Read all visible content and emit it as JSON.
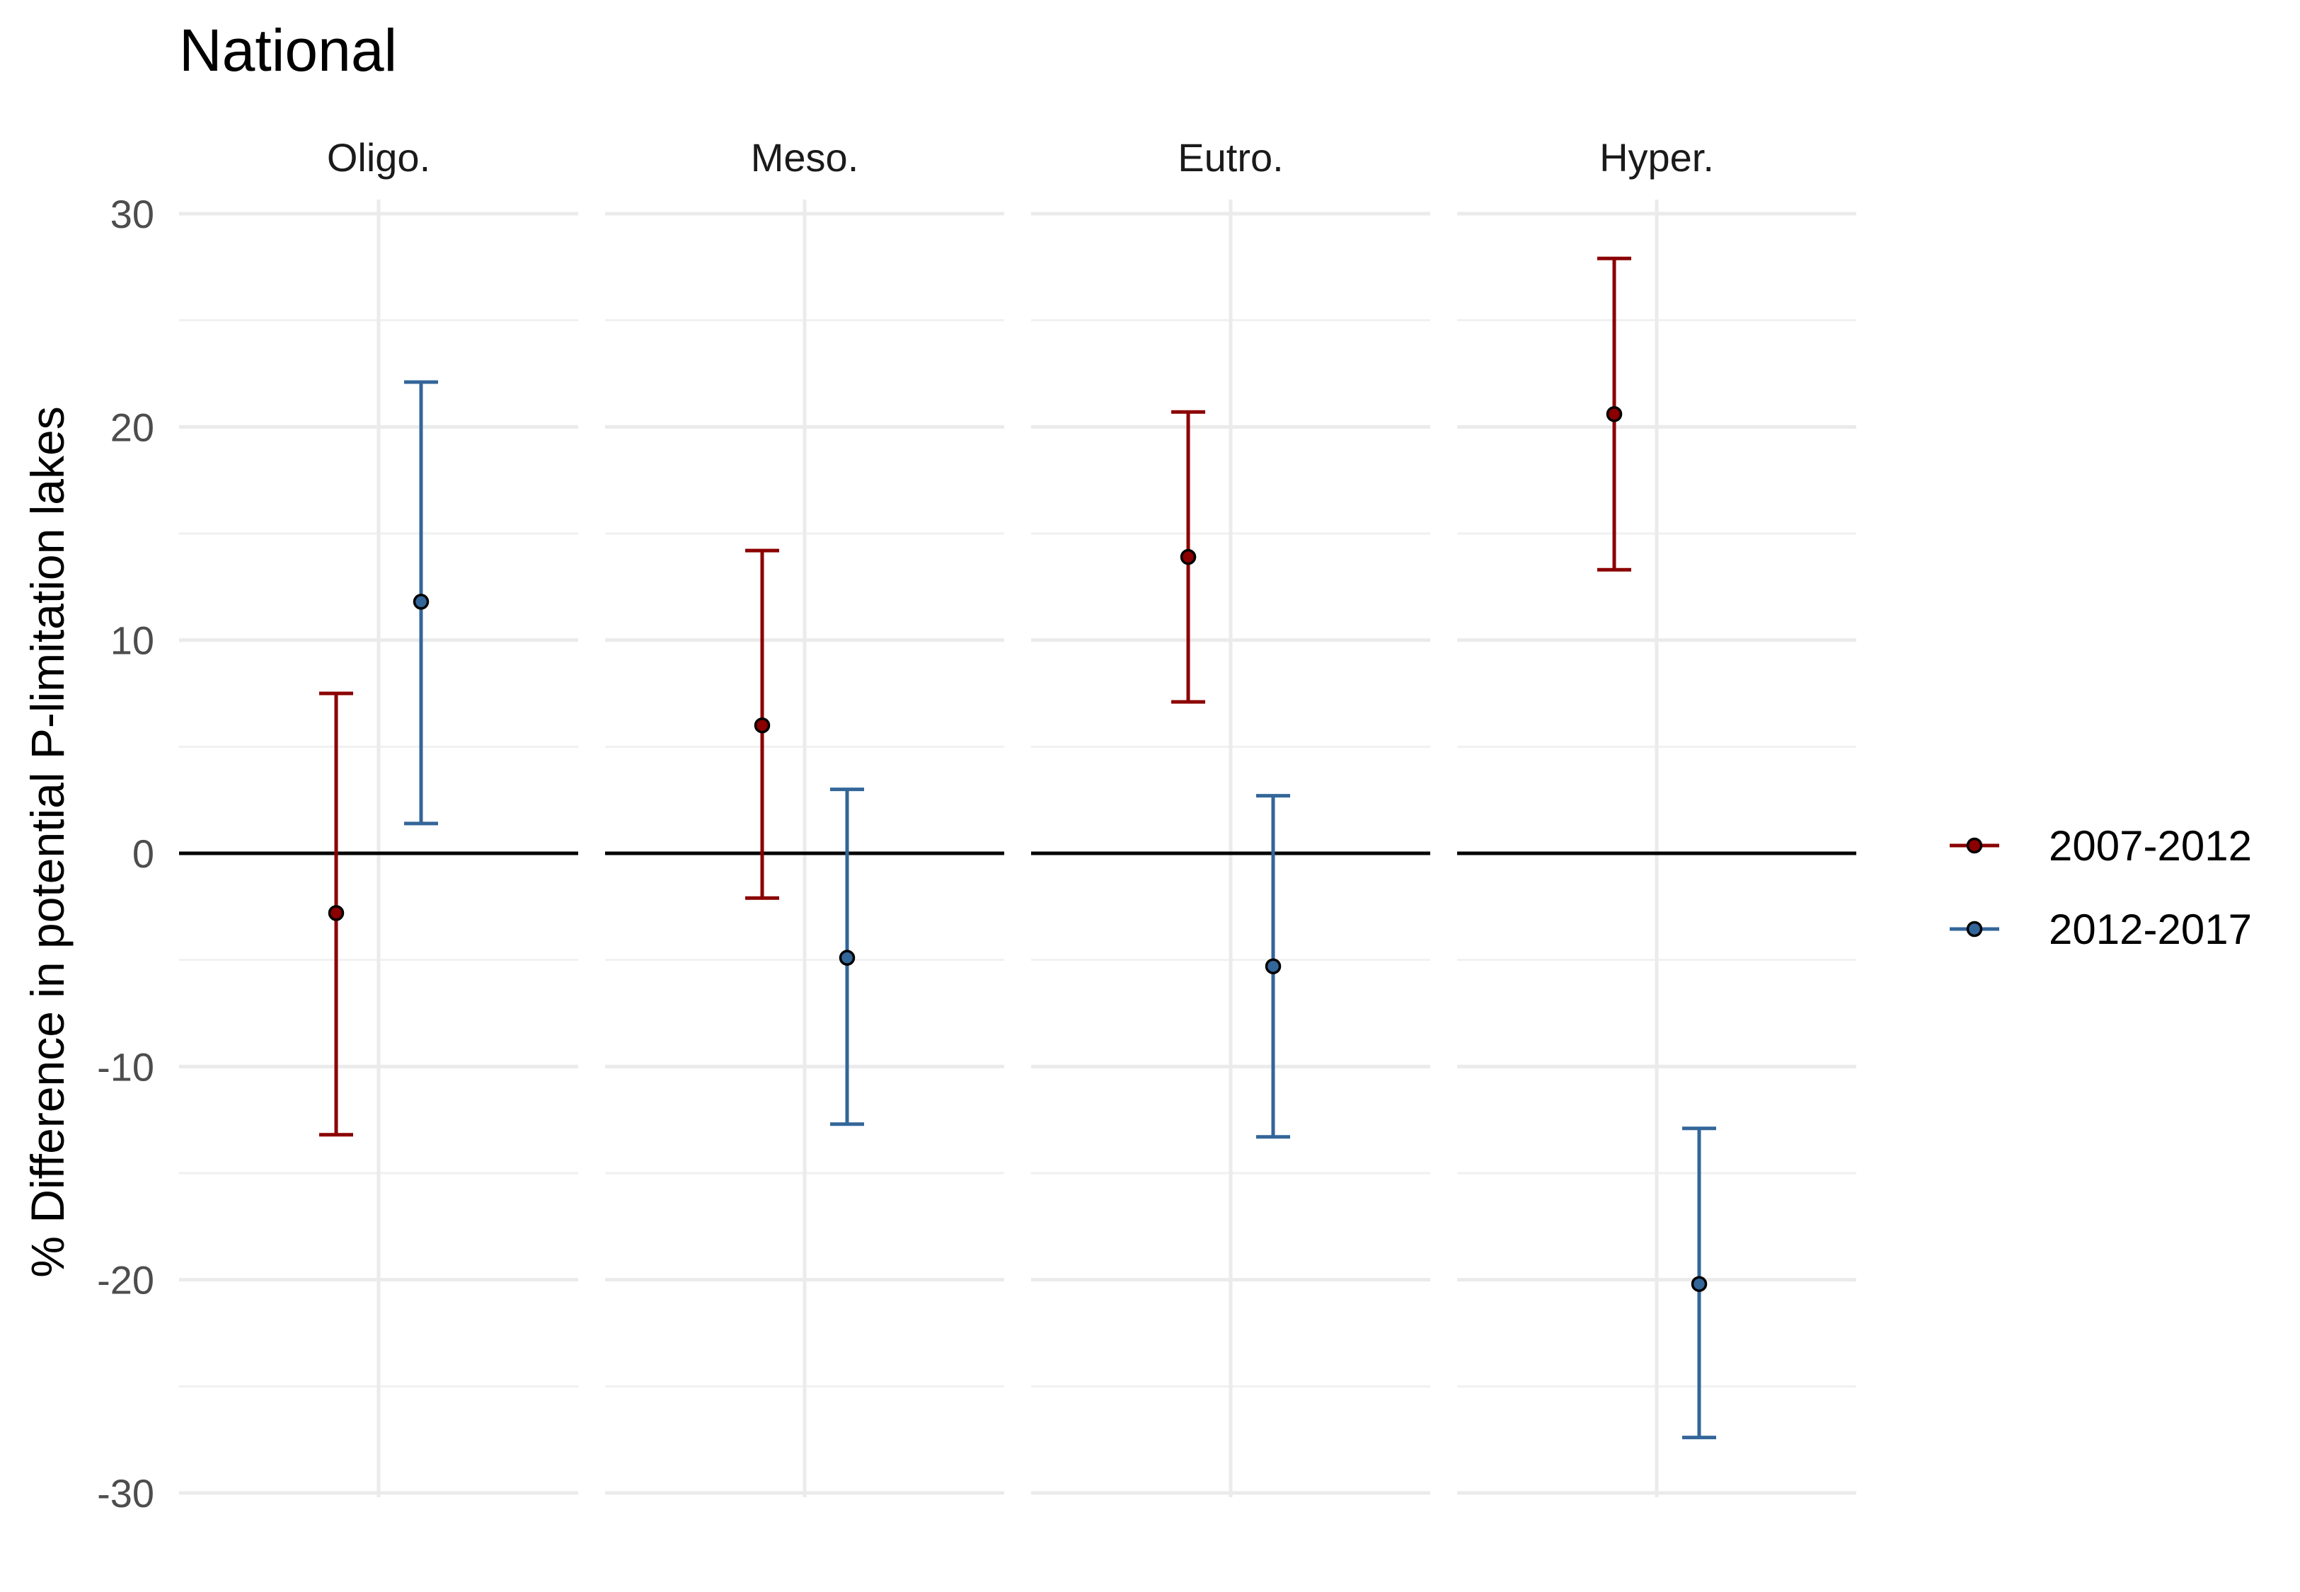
{
  "chart_data": {
    "type": "scatter",
    "title": "National",
    "ylabel": "% Difference in potential P-limitation lakes",
    "xlabel": "",
    "ylim": [
      -30,
      30
    ],
    "yticks": [
      30,
      20,
      10,
      0,
      -10,
      -20,
      -30
    ],
    "grid": true,
    "legend_position": "right",
    "reference_line_y": 0,
    "panels": [
      "Oligo.",
      "Meso.",
      "Eutro.",
      "Hyper."
    ],
    "series": [
      {
        "name": "2007-2012",
        "color": "#8b0000",
        "points": [
          {
            "panel": "Oligo.",
            "estimate": -2.8,
            "lower": -13.2,
            "upper": 7.5
          },
          {
            "panel": "Meso.",
            "estimate": 6.0,
            "lower": -2.1,
            "upper": 14.2
          },
          {
            "panel": "Eutro.",
            "estimate": 13.9,
            "lower": 7.1,
            "upper": 20.7
          },
          {
            "panel": "Hyper.",
            "estimate": 20.6,
            "lower": 13.3,
            "upper": 27.9
          }
        ]
      },
      {
        "name": "2012-2017",
        "color": "#336699",
        "points": [
          {
            "panel": "Oligo.",
            "estimate": 11.8,
            "lower": 1.4,
            "upper": 22.1
          },
          {
            "panel": "Meso.",
            "estimate": -4.9,
            "lower": -12.7,
            "upper": 3.0
          },
          {
            "panel": "Eutro.",
            "estimate": -5.3,
            "lower": -13.3,
            "upper": 2.7
          },
          {
            "panel": "Hyper.",
            "estimate": -20.2,
            "lower": -27.4,
            "upper": -12.9
          }
        ]
      }
    ]
  }
}
